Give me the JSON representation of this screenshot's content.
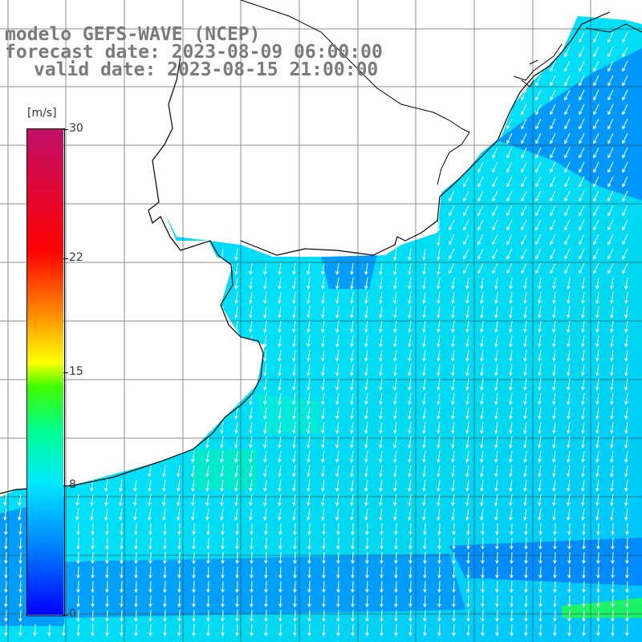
{
  "title": {
    "model": "modelo GEFS-WAVE (NCEP)",
    "forecast": "forecast date: 2023-08-09 06:00:00",
    "valid": "valid date: 2023-08-15 21:00:00"
  },
  "colorbar": {
    "unit": "[m/s]",
    "ticks": [
      {
        "value": 30,
        "label": "30"
      },
      {
        "value": 22,
        "label": "22"
      },
      {
        "value": 15,
        "label": "15"
      },
      {
        "value": 8,
        "label": "8"
      },
      {
        "value": 0,
        "label": "0"
      }
    ],
    "range": [
      0,
      30
    ],
    "colors": [
      "#0000ff",
      "#0080ff",
      "#00e0ff",
      "#00ff60",
      "#ffff00",
      "#ff8000",
      "#ff0000",
      "#c0106a"
    ]
  },
  "map": {
    "variable": "wind speed",
    "land_color": "#ffffff",
    "arrow_color": "#ffffff",
    "grid_color": "#444444"
  }
}
